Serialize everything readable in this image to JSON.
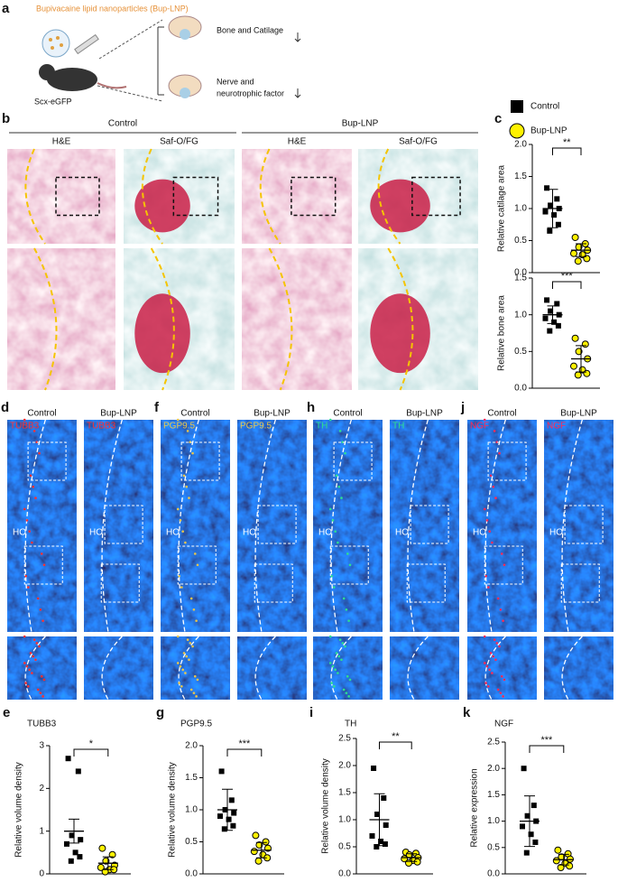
{
  "panel_a": {
    "letter": "a",
    "title": "Bupivacaine lipid nanoparticles (Bup-LNP)",
    "mouse": "Scx-eGFP",
    "outcomes": [
      "Bone and Catilage",
      "Nerve and",
      "neurotrophic factor"
    ]
  },
  "panel_b": {
    "letter": "b",
    "groups": [
      "Control",
      "Bup-LNP"
    ],
    "stains": [
      "H&E",
      "Saf-O/FG",
      "H&E",
      "Saf-O/FG"
    ]
  },
  "legend": [
    {
      "name": "Control",
      "color": "#000000"
    },
    {
      "name": "Bup-LNP",
      "color": "#fff200"
    }
  ],
  "fluorescence": [
    {
      "letter": "d",
      "groups": [
        "Control",
        "Bup-LNP"
      ],
      "stain": "TUBB3",
      "stain_color": "#ff3030",
      "region": "HO"
    },
    {
      "letter": "f",
      "groups": [
        "Control",
        "Bup-LNP"
      ],
      "stain": "PGP9.5",
      "stain_color": "#e9c54a",
      "region": "HO"
    },
    {
      "letter": "h",
      "groups": [
        "Control",
        "Bup-LNP"
      ],
      "stain": "TH",
      "stain_color": "#2ee08f",
      "region": "HO"
    },
    {
      "letter": "j",
      "groups": [
        "Control",
        "Bup-LNP"
      ],
      "stain": "NGF",
      "stain_color": "#ff2a55",
      "region": "HO"
    }
  ],
  "chart_data": [
    {
      "type": "scatter",
      "letter": "c",
      "y_label": "Relative catilage area",
      "ylim": [
        0,
        2
      ],
      "yticks": [
        {
          "value": 0,
          "label": "0.0"
        },
        0.5,
        {
          "value": 1,
          "label": "1.0"
        },
        1.5,
        {
          "value": 2,
          "label": "2.0"
        }
      ],
      "significance": "**",
      "series": [
        {
          "values": [
            1.32,
            1.15,
            1.05,
            1.0,
            0.95,
            0.9,
            0.75,
            0.65
          ],
          "mean": 1.0,
          "sd": 0.3
        },
        {
          "values": [
            0.55,
            0.45,
            0.4,
            0.35,
            0.3,
            0.28,
            0.22,
            0.18
          ],
          "mean": 0.35,
          "sd": 0.1
        }
      ]
    },
    {
      "type": "scatter",
      "y_label": "Relative bone area",
      "ylim": [
        0,
        1.5
      ],
      "yticks": [
        {
          "value": 0,
          "label": "0.0"
        },
        0.5,
        {
          "value": 1,
          "label": "1.0"
        },
        1.5
      ],
      "significance": "***",
      "series": [
        {
          "values": [
            1.2,
            1.15,
            1.05,
            1.0,
            0.95,
            0.9,
            0.85,
            0.78
          ],
          "mean": 1.0,
          "sd": 0.12
        },
        {
          "values": [
            0.68,
            0.6,
            0.5,
            0.4,
            0.3,
            0.25,
            0.2,
            0.18
          ],
          "mean": 0.4,
          "sd": 0.18
        }
      ]
    },
    {
      "type": "scatter",
      "letter": "e",
      "title": "TUBB3",
      "y_label": "Relative volume density",
      "ylim": [
        0,
        3
      ],
      "yticks": [
        0,
        1,
        2,
        3
      ],
      "significance": "*",
      "series": [
        {
          "values": [
            2.7,
            2.4,
            0.9,
            0.8,
            0.7,
            0.5,
            0.4,
            0.3
          ],
          "mean": 1.0,
          "sd": 0.28
        },
        {
          "values": [
            0.6,
            0.45,
            0.3,
            0.2,
            0.15,
            0.1,
            0.1,
            0.05
          ],
          "mean": 0.25,
          "sd": 0.15
        }
      ]
    },
    {
      "type": "scatter",
      "letter": "g",
      "title": "PGP9.5",
      "y_label": "Relative volume density",
      "ylim": [
        0,
        2
      ],
      "yticks": [
        {
          "value": 0,
          "label": "0.0"
        },
        0.5,
        {
          "value": 1,
          "label": "1.0"
        },
        1.5,
        {
          "value": 2,
          "label": "2.0"
        }
      ],
      "significance": "***",
      "series": [
        {
          "values": [
            1.6,
            1.15,
            1.0,
            0.95,
            0.9,
            0.85,
            0.75,
            0.7
          ],
          "mean": 1.0,
          "sd": 0.32
        },
        {
          "values": [
            0.6,
            0.5,
            0.45,
            0.4,
            0.35,
            0.3,
            0.25,
            0.2
          ],
          "mean": 0.37,
          "sd": 0.12
        }
      ]
    },
    {
      "type": "scatter",
      "letter": "i",
      "title": "TH",
      "y_label": "Relative volume density",
      "ylim": [
        0,
        2.5
      ],
      "yticks": [
        {
          "value": 0,
          "label": "0.0"
        },
        0.5,
        {
          "value": 1,
          "label": "1.0"
        },
        1.5,
        {
          "value": 2,
          "label": "2.0"
        },
        2.5
      ],
      "significance": "**",
      "series": [
        {
          "values": [
            1.95,
            1.4,
            1.1,
            0.9,
            0.7,
            0.6,
            0.55,
            0.5
          ],
          "mean": 1.0,
          "sd": 0.48
        },
        {
          "values": [
            0.4,
            0.38,
            0.35,
            0.3,
            0.28,
            0.25,
            0.22,
            0.2
          ],
          "mean": 0.3,
          "sd": 0.07
        }
      ]
    },
    {
      "type": "scatter",
      "letter": "k",
      "title": "NGF",
      "y_label": "Relative expression",
      "ylim": [
        0,
        2.5
      ],
      "yticks": [
        {
          "value": 0,
          "label": "0.0"
        },
        0.5,
        {
          "value": 1,
          "label": "1.0"
        },
        1.5,
        {
          "value": 2,
          "label": "2.0"
        },
        2.5
      ],
      "significance": "***",
      "series": [
        {
          "values": [
            2.0,
            1.3,
            1.1,
            1.0,
            0.9,
            0.75,
            0.6,
            0.4
          ],
          "mean": 1.0,
          "sd": 0.48
        },
        {
          "values": [
            0.45,
            0.38,
            0.32,
            0.28,
            0.25,
            0.2,
            0.15,
            0.12
          ],
          "mean": 0.27,
          "sd": 0.1
        }
      ]
    }
  ]
}
